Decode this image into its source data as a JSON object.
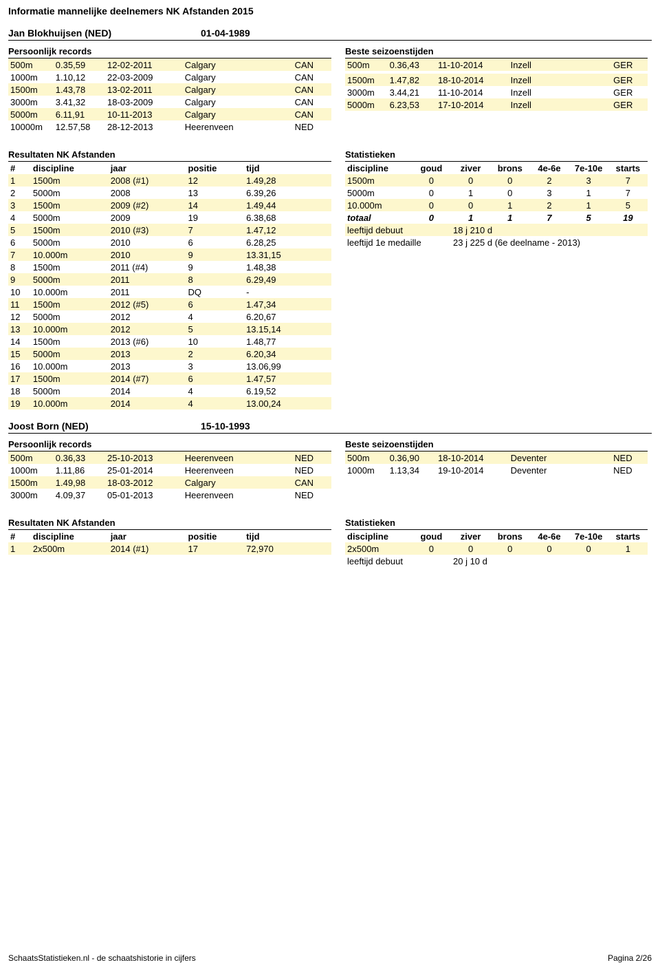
{
  "page_title": "Informatie mannelijke deelnemers NK Afstanden 2015",
  "footer_left": "SchaatsStatistieken.nl - de schaatshistorie in cijfers",
  "footer_right": "Pagina 2/26",
  "colors": {
    "highlight": "#fdf7cd",
    "text": "#000000",
    "background": "#ffffff"
  },
  "labels": {
    "pr": "Persoonlijk records",
    "sb": "Beste seizoenstijden",
    "results": "Resultaten NK Afstanden",
    "stats": "Statistieken",
    "hdr_results": [
      "#",
      "discipline",
      "jaar",
      "positie",
      "tijd"
    ],
    "hdr_stats": [
      "discipline",
      "goud",
      "ziver",
      "brons",
      "4e-6e",
      "7e-10e",
      "starts"
    ],
    "total": "totaal",
    "debut": "leeftijd debuut",
    "first_medal": "leeftijd 1e medaille"
  },
  "athletes": [
    {
      "name": "Jan Blokhuijsen (NED)",
      "dob": "01-04-1989",
      "pr": [
        {
          "d": "500m",
          "t": "0.35,59",
          "date": "12-02-2011",
          "loc": "Calgary",
          "c": "CAN",
          "hl": true
        },
        {
          "d": "1000m",
          "t": "1.10,12",
          "date": "22-03-2009",
          "loc": "Calgary",
          "c": "CAN",
          "hl": false
        },
        {
          "d": "1500m",
          "t": "1.43,78",
          "date": "13-02-2011",
          "loc": "Calgary",
          "c": "CAN",
          "hl": true
        },
        {
          "d": "3000m",
          "t": "3.41,32",
          "date": "18-03-2009",
          "loc": "Calgary",
          "c": "CAN",
          "hl": false
        },
        {
          "d": "5000m",
          "t": "6.11,91",
          "date": "10-11-2013",
          "loc": "Calgary",
          "c": "CAN",
          "hl": true
        },
        {
          "d": "10000m",
          "t": "12.57,58",
          "date": "28-12-2013",
          "loc": "Heerenveen",
          "c": "NED",
          "hl": false
        }
      ],
      "sb": [
        {
          "d": "500m",
          "t": "0.36,43",
          "date": "11-10-2014",
          "loc": "Inzell",
          "c": "GER",
          "hl": true
        },
        null,
        {
          "d": "1500m",
          "t": "1.47,82",
          "date": "18-10-2014",
          "loc": "Inzell",
          "c": "GER",
          "hl": true
        },
        {
          "d": "3000m",
          "t": "3.44,21",
          "date": "11-10-2014",
          "loc": "Inzell",
          "c": "GER",
          "hl": false
        },
        {
          "d": "5000m",
          "t": "6.23,53",
          "date": "17-10-2014",
          "loc": "Inzell",
          "c": "GER",
          "hl": true
        }
      ],
      "results": [
        {
          "n": "1",
          "d": "1500m",
          "y": "2008 (#1)",
          "p": "12",
          "t": "1.49,28",
          "hl": true
        },
        {
          "n": "2",
          "d": "5000m",
          "y": "2008",
          "p": "13",
          "t": "6.39,26",
          "hl": false
        },
        {
          "n": "3",
          "d": "1500m",
          "y": "2009 (#2)",
          "p": "14",
          "t": "1.49,44",
          "hl": true
        },
        {
          "n": "4",
          "d": "5000m",
          "y": "2009",
          "p": "19",
          "t": "6.38,68",
          "hl": false
        },
        {
          "n": "5",
          "d": "1500m",
          "y": "2010 (#3)",
          "p": "7",
          "t": "1.47,12",
          "hl": true
        },
        {
          "n": "6",
          "d": "5000m",
          "y": "2010",
          "p": "6",
          "t": "6.28,25",
          "hl": false
        },
        {
          "n": "7",
          "d": "10.000m",
          "y": "2010",
          "p": "9",
          "t": "13.31,15",
          "hl": true
        },
        {
          "n": "8",
          "d": "1500m",
          "y": "2011 (#4)",
          "p": "9",
          "t": "1.48,38",
          "hl": false
        },
        {
          "n": "9",
          "d": "5000m",
          "y": "2011",
          "p": "8",
          "t": "6.29,49",
          "hl": true
        },
        {
          "n": "10",
          "d": "10.000m",
          "y": "2011",
          "p": "DQ",
          "t": "-",
          "hl": false
        },
        {
          "n": "11",
          "d": "1500m",
          "y": "2012 (#5)",
          "p": "6",
          "t": "1.47,34",
          "hl": true
        },
        {
          "n": "12",
          "d": "5000m",
          "y": "2012",
          "p": "4",
          "t": "6.20,67",
          "hl": false
        },
        {
          "n": "13",
          "d": "10.000m",
          "y": "2012",
          "p": "5",
          "t": "13.15,14",
          "hl": true
        },
        {
          "n": "14",
          "d": "1500m",
          "y": "2013 (#6)",
          "p": "10",
          "t": "1.48,77",
          "hl": false
        },
        {
          "n": "15",
          "d": "5000m",
          "y": "2013",
          "p": "2",
          "t": "6.20,34",
          "hl": true
        },
        {
          "n": "16",
          "d": "10.000m",
          "y": "2013",
          "p": "3",
          "t": "13.06,99",
          "hl": false
        },
        {
          "n": "17",
          "d": "1500m",
          "y": "2014 (#7)",
          "p": "6",
          "t": "1.47,57",
          "hl": true
        },
        {
          "n": "18",
          "d": "5000m",
          "y": "2014",
          "p": "4",
          "t": "6.19,52",
          "hl": false
        },
        {
          "n": "19",
          "d": "10.000m",
          "y": "2014",
          "p": "4",
          "t": "13.00,24",
          "hl": true
        }
      ],
      "stats": {
        "rows": [
          {
            "d": "1500m",
            "g": "0",
            "z": "0",
            "b": "0",
            "e46": "2",
            "e710": "3",
            "s": "7",
            "hl": true
          },
          {
            "d": "5000m",
            "g": "0",
            "z": "1",
            "b": "0",
            "e46": "3",
            "e710": "1",
            "s": "7",
            "hl": false
          },
          {
            "d": "10.000m",
            "g": "0",
            "z": "0",
            "b": "1",
            "e46": "2",
            "e710": "1",
            "s": "5",
            "hl": true
          }
        ],
        "total": {
          "d": "totaal",
          "g": "0",
          "z": "1",
          "b": "1",
          "e46": "7",
          "e710": "5",
          "s": "19"
        },
        "debut": "18 j 210 d",
        "first_medal": "23 j 225 d (6e deelname - 2013)"
      }
    },
    {
      "name": "Joost Born (NED)",
      "dob": "15-10-1993",
      "pr": [
        {
          "d": "500m",
          "t": "0.36,33",
          "date": "25-10-2013",
          "loc": "Heerenveen",
          "c": "NED",
          "hl": true
        },
        {
          "d": "1000m",
          "t": "1.11,86",
          "date": "25-01-2014",
          "loc": "Heerenveen",
          "c": "NED",
          "hl": false
        },
        {
          "d": "1500m",
          "t": "1.49,98",
          "date": "18-03-2012",
          "loc": "Calgary",
          "c": "CAN",
          "hl": true
        },
        {
          "d": "3000m",
          "t": "4.09,37",
          "date": "05-01-2013",
          "loc": "Heerenveen",
          "c": "NED",
          "hl": false
        }
      ],
      "sb": [
        {
          "d": "500m",
          "t": "0.36,90",
          "date": "18-10-2014",
          "loc": "Deventer",
          "c": "NED",
          "hl": true
        },
        {
          "d": "1000m",
          "t": "1.13,34",
          "date": "19-10-2014",
          "loc": "Deventer",
          "c": "NED",
          "hl": false
        }
      ],
      "results": [
        {
          "n": "1",
          "d": "2x500m",
          "y": "2014 (#1)",
          "p": "17",
          "t": "72,970",
          "hl": true
        }
      ],
      "stats": {
        "rows": [
          {
            "d": "2x500m",
            "g": "0",
            "z": "0",
            "b": "0",
            "e46": "0",
            "e710": "0",
            "s": "1",
            "hl": true
          }
        ],
        "total": null,
        "debut": "20 j 10 d",
        "first_medal": null
      }
    }
  ]
}
